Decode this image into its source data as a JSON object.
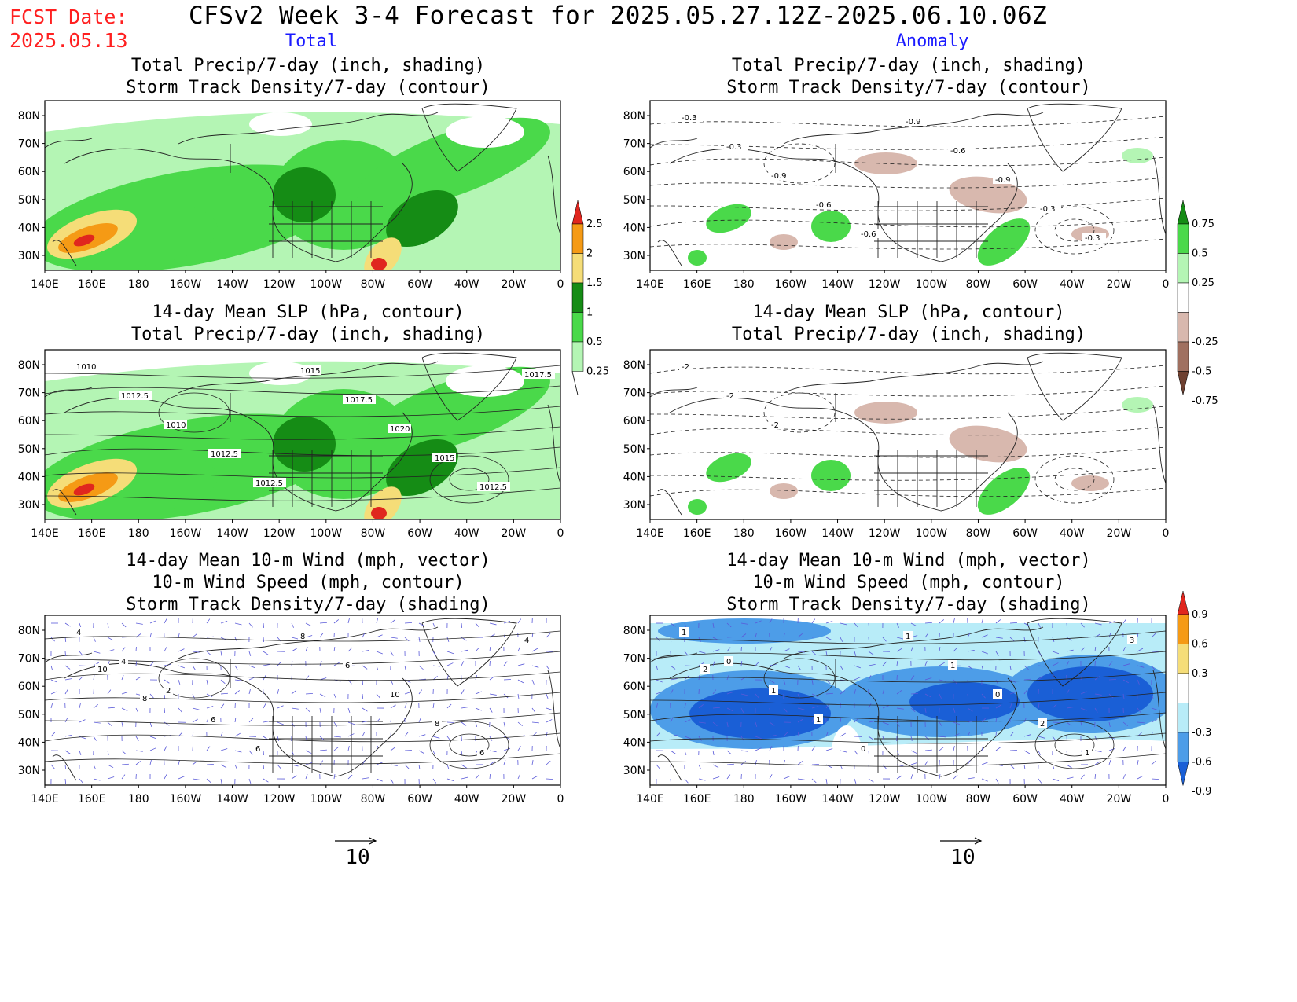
{
  "header": {
    "fcst_label": "FCST Date:",
    "fcst_date": "2025.05.13",
    "title": "CFSv2 Week 3-4 Forecast for 2025.05.27.12Z-2025.06.10.06Z",
    "col_left": "Total",
    "col_right": "Anomaly"
  },
  "axes": {
    "lat_ticks": [
      "80N",
      "70N",
      "60N",
      "50N",
      "40N",
      "30N"
    ],
    "lon_ticks": [
      "140E",
      "160E",
      "180",
      "160W",
      "140W",
      "120W",
      "100W",
      "80W",
      "60W",
      "40W",
      "20W",
      "0"
    ]
  },
  "panels": {
    "left": [
      {
        "lines": [
          "Total Precip/7-day (inch, shading)",
          "Storm Track Density/7-day (contour)"
        ]
      },
      {
        "lines": [
          "14-day Mean SLP (hPa, contour)",
          "Total Precip/7-day (inch, shading)"
        ]
      },
      {
        "lines": [
          "14-day Mean 10-m Wind (mph, vector)",
          "10-m Wind Speed (mph, contour)",
          "Storm Track Density/7-day (shading)"
        ]
      }
    ],
    "right": [
      {
        "lines": [
          "Total Precip/7-day (inch, shading)",
          "Storm Track Density/7-day (contour)"
        ]
      },
      {
        "lines": [
          "14-day Mean SLP (hPa, contour)",
          "Total Precip/7-day (inch, shading)"
        ]
      },
      {
        "lines": [
          "14-day Mean 10-m Wind (mph, vector)",
          "10-m Wind Speed (mph, contour)",
          "Storm Track Density/7-day (shading)"
        ]
      }
    ]
  },
  "colorbars": {
    "total_precip": {
      "labels": [
        "2.5",
        "2",
        "1.5",
        "1",
        "0.5",
        "0.25"
      ],
      "colors": [
        "#e0261e",
        "#f59a15",
        "#f5dd78",
        "#158c15",
        "#4ad94a",
        "#b4f5b4"
      ]
    },
    "precip_anomaly": {
      "labels": [
        "0.75",
        "0.5",
        "0.25",
        "-0.25",
        "-0.5",
        "-0.75"
      ],
      "colors": [
        "#158c15",
        "#4ad94a",
        "#b4f5b4",
        "#ffffff",
        "#d8b8ae",
        "#a07060",
        "#6e4030"
      ]
    },
    "storm_anomaly": {
      "labels": [
        "0.9",
        "0.6",
        "0.3",
        "-0.3",
        "-0.6",
        "-0.9"
      ],
      "colors": [
        "#e0261e",
        "#f59a15",
        "#f5dd78",
        "#ffffff",
        "#b8ecf8",
        "#4d9de8",
        "#1a5fd6"
      ]
    }
  },
  "contour_labels": {
    "storm_anomaly": [
      "-0.3",
      "-0.3",
      "-0.9",
      "-0.6",
      "-0.6",
      "-0.9",
      "-0.6",
      "-0.9",
      "-0.3",
      "-0.3"
    ],
    "slp_total": [
      "1010",
      "1012.5",
      "1010",
      "1012.5",
      "1012.5",
      "1015",
      "1017.5",
      "1020",
      "1015",
      "1012.5",
      "1017.5"
    ],
    "slp_anomaly": [
      "-2",
      "-2",
      "-2"
    ],
    "wind_total": [
      "4",
      "4",
      "2",
      "6",
      "6",
      "8",
      "6",
      "10",
      "8",
      "6",
      "4",
      "10",
      "8"
    ],
    "wind_anomaly": [
      "1",
      "0",
      "1",
      "1",
      "0",
      "1",
      "1",
      "0",
      "2",
      "1",
      "3",
      "2"
    ]
  },
  "reference_vector": {
    "left": "10",
    "right": "10"
  },
  "icons": [
    "map-outline-icon",
    "reference-arrow-icon"
  ]
}
